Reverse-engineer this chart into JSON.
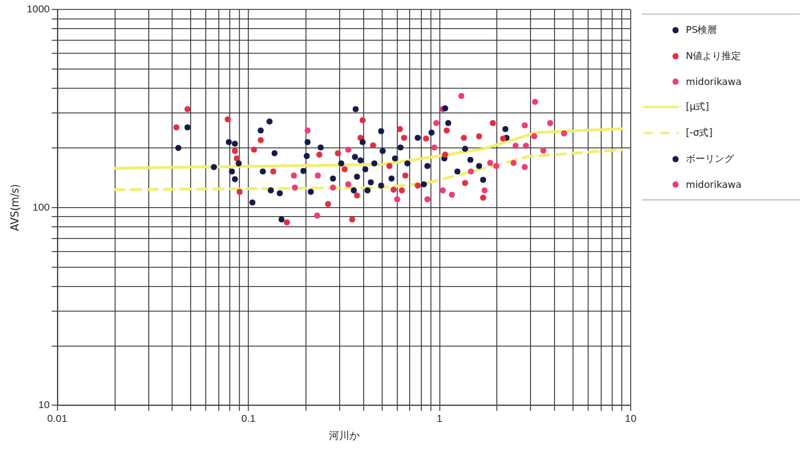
{
  "chart_data": {
    "type": "scatter",
    "xlabel": "河川か",
    "ylabel": "AVS(m/s)",
    "log": "xy",
    "grid": true,
    "legend": "right",
    "xlim": [
      0.01,
      10
    ],
    "xticks": [
      0.01,
      {
        "value": 0.02,
        "label": null
      },
      {
        "value": 0.03,
        "label": null
      },
      {
        "value": 0.04,
        "label": null
      },
      {
        "value": 0.05,
        "label": null
      },
      {
        "value": 0.06,
        "label": null
      },
      {
        "value": 0.07,
        "label": null
      },
      {
        "value": 0.08,
        "label": null
      },
      {
        "value": 0.09,
        "label": null
      },
      0.1,
      {
        "value": 0.2,
        "label": null
      },
      {
        "value": 0.3,
        "label": null
      },
      {
        "value": 0.4,
        "label": null
      },
      {
        "value": 0.5,
        "label": null
      },
      {
        "value": 0.6,
        "label": null
      },
      {
        "value": 0.7,
        "label": null
      },
      {
        "value": 0.8,
        "label": null
      },
      {
        "value": 0.9,
        "label": null
      },
      1,
      {
        "value": 2,
        "label": null
      },
      {
        "value": 3,
        "label": null
      },
      {
        "value": 4,
        "label": null
      },
      {
        "value": 5,
        "label": null
      },
      {
        "value": 6,
        "label": null
      },
      {
        "value": 7,
        "label": null
      },
      {
        "value": 8,
        "label": null
      },
      {
        "value": 9,
        "label": null
      },
      10
    ],
    "ylim": [
      10,
      1000
    ],
    "yticks": [
      10,
      {
        "value": 20,
        "label": null
      },
      {
        "value": 30,
        "label": null
      },
      {
        "value": 40,
        "label": null
      },
      {
        "value": 50,
        "label": null
      },
      {
        "value": 60,
        "label": null
      },
      {
        "value": 70,
        "label": null
      },
      {
        "value": 80,
        "label": null
      },
      {
        "value": 90,
        "label": null
      },
      100,
      {
        "value": 200,
        "label": null
      },
      {
        "value": 300,
        "label": null
      },
      {
        "value": 400,
        "label": null
      },
      {
        "value": 500,
        "label": null
      },
      {
        "value": 600,
        "label": null
      },
      {
        "value": 700,
        "label": null
      },
      {
        "value": 800,
        "label": null
      },
      {
        "value": 900,
        "label": null
      },
      1000
    ],
    "series": [
      {
        "name": "PS検層",
        "marker": "circle",
        "color": "#161a4a",
        "x": [
          0.043,
          0.048,
          0.066,
          0.079,
          0.085,
          0.089,
          0.082,
          0.085,
          0.105,
          0.116,
          0.119,
          0.129,
          0.137,
          0.204,
          0.239,
          0.202,
          0.194,
          0.131,
          0.146,
          0.149,
          0.212,
          0.277,
          0.364,
          0.396,
          0.306,
          0.361,
          0.386,
          0.456,
          0.409,
          0.37,
          0.437,
          0.42,
          0.356,
          0.495,
          0.495,
          0.585,
          0.625,
          0.769,
          0.679
        ],
        "values": [
          200,
          254,
          160,
          214,
          210,
          167,
          152,
          139,
          106,
          245,
          152,
          272,
          188,
          214,
          201,
          182,
          153,
          122,
          118,
          87,
          120,
          140,
          314,
          214,
          167,
          180,
          173,
          167,
          156,
          143,
          134,
          122,
          122,
          129,
          243,
          177,
          201,
          225,
          167
        ]
      },
      {
        "name": "N値より推定",
        "marker": "circle",
        "color": "#e03040",
        "x": [
          0.048,
          0.042,
          0.078,
          0.085,
          0.087,
          0.09,
          0.107,
          0.396,
          0.116,
          0.135,
          0.235,
          0.294,
          0.319,
          0.261,
          0.349,
          0.159,
          0.449,
          0.386,
          0.62,
          0.652,
          0.85,
          0.575,
          0.635,
          0.662,
          0.769,
          0.547,
          0.37,
          1.9,
          1.61,
          1.09,
          1.34,
          1.07,
          1.36,
          1.69,
          2.15
        ],
        "values": [
          314,
          254,
          279,
          193,
          177,
          120,
          196,
          276,
          219,
          152,
          185,
          188,
          156,
          104,
          87,
          84,
          206,
          225,
          249,
          225,
          223,
          123,
          122,
          145,
          129,
          162,
          115,
          267,
          229,
          245,
          225,
          185,
          133,
          112,
          223
        ]
      },
      {
        "name": "midorikawa",
        "marker": "circle",
        "color": "#ee3c78",
        "x": [
          1.3,
          3.16,
          2.79,
          3.79,
          3.13,
          4.48,
          2.5,
          2.83,
          3.49,
          1.84,
          1.98,
          2.44,
          2.79,
          1.04,
          1.16,
          1.46,
          1.72,
          0.204,
          0.173,
          0.231
        ],
        "values": [
          366,
          342,
          260,
          267,
          229,
          237,
          205,
          205,
          194,
          168,
          162,
          168,
          160,
          122,
          116,
          152,
          122,
          245,
          145,
          145
        ]
      },
      {
        "name": "[μ式]",
        "type": "line",
        "marker": "none",
        "line_style": "solid",
        "color": "#f2ee6a",
        "x": [
          0.02,
          0.5,
          0.95,
          1.7,
          3.2,
          9
        ],
        "values": [
          158,
          165,
          181,
          198,
          239,
          250
        ]
      },
      {
        "name": "[-σ式]",
        "type": "line",
        "marker": "none",
        "line_style": "dashed",
        "color": "#f2ee6a",
        "x": [
          0.02,
          0.5,
          0.86,
          1.9,
          2.9,
          9
        ],
        "values": [
          123,
          126,
          133,
          162,
          181,
          196
        ]
      },
      {
        "name": "ボーリング",
        "marker": "circle",
        "color": "#161a4a",
        "x": [
          0.908,
          1.07,
          1.11,
          1.06,
          0.561,
          0.504,
          2.21,
          2.24,
          1.45,
          1.61,
          1.69,
          1.36,
          1.24,
          0.864,
          0.828
        ],
        "values": [
          239,
          317,
          267,
          177,
          140,
          193,
          249,
          225,
          174,
          162,
          138,
          198,
          152,
          162,
          131
        ]
      },
      {
        "name": "midorikawa",
        "marker": "circle",
        "color": "#ee3c78",
        "x": [
          0.175,
          0.277,
          0.229,
          0.864,
          0.6,
          0.962,
          1.04,
          0.939,
          0.333,
          0.333
        ],
        "values": [
          126,
          126,
          91,
          110,
          110,
          267,
          314,
          201,
          196,
          131
        ]
      }
    ]
  }
}
